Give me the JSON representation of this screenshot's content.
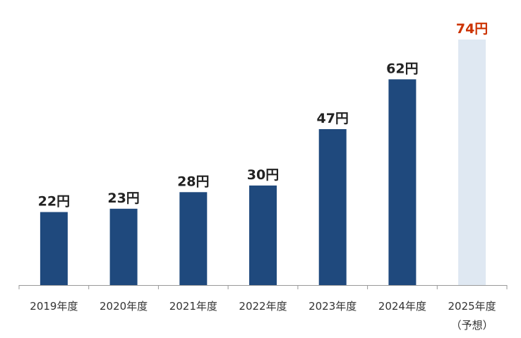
{
  "chart_data": {
    "type": "bar",
    "title": "",
    "xlabel": "",
    "ylabel": "",
    "unit_suffix": "円",
    "ylim": [
      0,
      80
    ],
    "grid": false,
    "categories": [
      "2019年度",
      "2020年度",
      "2021年度",
      "2022年度",
      "2023年度",
      "2024年度",
      "2025年度"
    ],
    "category_notes": [
      "",
      "",
      "",
      "",
      "",
      "",
      "（予想）"
    ],
    "values": [
      22,
      23,
      28,
      30,
      47,
      62,
      74
    ],
    "data_labels": [
      "22円",
      "23円",
      "28円",
      "30円",
      "47円",
      "62円",
      "74円"
    ],
    "forecast": [
      false,
      false,
      false,
      false,
      false,
      false,
      true
    ],
    "colors": {
      "actual_bar": "#1f497d",
      "forecast_bar": "#dfe8f2",
      "label": "#222222",
      "forecast_label": "#cc3300",
      "axis": "#999999"
    }
  }
}
